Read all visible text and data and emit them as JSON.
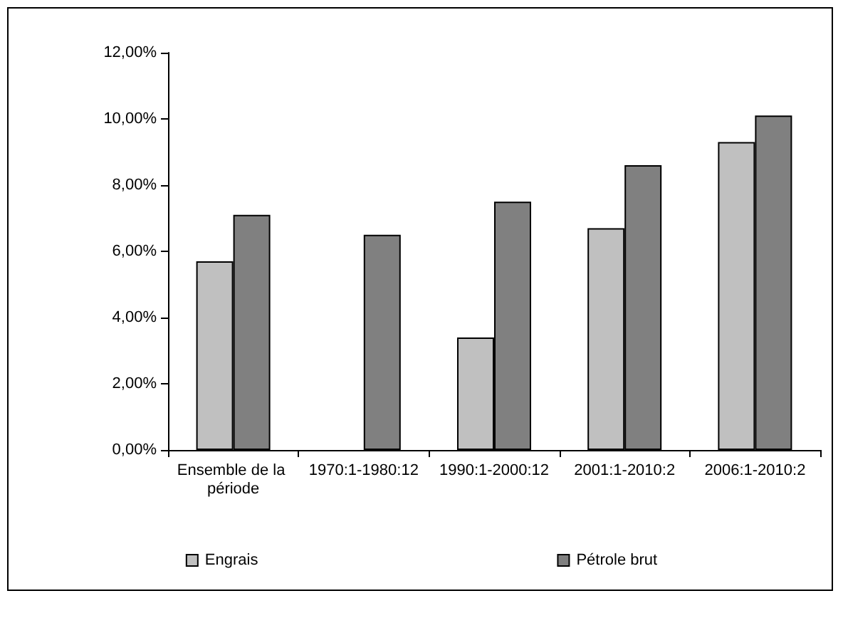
{
  "chart_data": {
    "type": "bar",
    "categories": [
      "Ensemble de la période",
      "1970:1-1980:12",
      "1990:1-2000:12",
      "2001:1-2010:2",
      "2006:1-2010:2"
    ],
    "series": [
      {
        "name": "Engrais",
        "color": "#c0c0c0",
        "values": [
          5.7,
          null,
          3.4,
          6.7,
          9.3
        ]
      },
      {
        "name": "Pétrole brut",
        "color": "#808080",
        "values": [
          7.1,
          6.5,
          7.5,
          8.6,
          10.1
        ]
      }
    ],
    "ylim": [
      0,
      12
    ],
    "yticks": [
      {
        "value": 0,
        "label": "0,00%"
      },
      {
        "value": 2,
        "label": "2,00%"
      },
      {
        "value": 4,
        "label": "4,00%"
      },
      {
        "value": 6,
        "label": "6,00%"
      },
      {
        "value": 8,
        "label": "8,00%"
      },
      {
        "value": 10,
        "label": "10,00%"
      },
      {
        "value": 12,
        "label": "12,00%"
      }
    ],
    "grid": false,
    "legend": "bottom"
  }
}
